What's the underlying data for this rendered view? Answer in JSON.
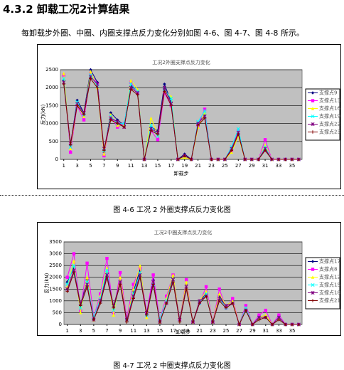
{
  "heading": "4.3.2 卸载工况2计算结果",
  "paragraph": "每卸载步外圈、中圈、内圈支撑点反力变化分别如图 4-6、图 4-7、图 4-8 所示。",
  "captions": [
    "图 4-6   工况 2 外圈支撑点反力变化图",
    "图 4-7   工况 2 中圈支撑点反力变化图"
  ],
  "chart_data": [
    {
      "type": "line",
      "title": "工况2外圈支撑点反力变化",
      "x_label": "卸载步",
      "y_label": "反力(kN)",
      "x": [
        1,
        2,
        3,
        4,
        5,
        6,
        7,
        8,
        9,
        10,
        11,
        12,
        13,
        14,
        15,
        16,
        17,
        18,
        19,
        20,
        21,
        22,
        23,
        24,
        25,
        26,
        27,
        28,
        29,
        30,
        31,
        32,
        33,
        34,
        35,
        36
      ],
      "xlim": [
        0.5,
        36.5
      ],
      "xticks": [
        1,
        3,
        5,
        7,
        9,
        11,
        13,
        15,
        17,
        19,
        21,
        23,
        25,
        27,
        29,
        31,
        33,
        35
      ],
      "ylim": [
        0,
        2500
      ],
      "yticks": [
        0,
        500,
        1000,
        1500,
        2000,
        2500
      ],
      "grid": true,
      "legend": "right",
      "series": [
        {
          "name": "支撑点9",
          "color": "#000080",
          "marker": "diamond",
          "values": [
            2200,
            400,
            1650,
            1300,
            2500,
            2150,
            200,
            1300,
            1100,
            950,
            2050,
            1900,
            0,
            900,
            800,
            2100,
            1600,
            0,
            150,
            0,
            1000,
            1250,
            0,
            0,
            0,
            300,
            700,
            0,
            0,
            0,
            300,
            0,
            0,
            0,
            0,
            0
          ]
        },
        {
          "name": "支撑点13",
          "color": "#ff00ff",
          "marker": "square",
          "values": [
            2350,
            200,
            1500,
            1100,
            2400,
            2100,
            100,
            1200,
            900,
            1000,
            2150,
            1850,
            0,
            800,
            550,
            1850,
            1500,
            0,
            100,
            0,
            950,
            1400,
            0,
            0,
            0,
            250,
            800,
            0,
            0,
            0,
            550,
            0,
            0,
            0,
            0,
            0
          ]
        },
        {
          "name": "支撑点16",
          "color": "#ffff00",
          "marker": "triangle",
          "values": [
            2400,
            300,
            1550,
            1200,
            2450,
            2000,
            150,
            1250,
            950,
            950,
            2200,
            1950,
            0,
            1150,
            700,
            1900,
            1750,
            0,
            50,
            0,
            900,
            1300,
            0,
            0,
            0,
            200,
            650,
            0,
            0,
            0,
            400,
            0,
            0,
            0,
            0,
            0
          ]
        },
        {
          "name": "支撑点19",
          "color": "#00ffff",
          "marker": "x",
          "values": [
            2250,
            350,
            1600,
            1250,
            2350,
            2050,
            250,
            1200,
            1000,
            1000,
            2100,
            1900,
            0,
            950,
            650,
            1950,
            1700,
            0,
            100,
            0,
            1050,
            1350,
            0,
            0,
            0,
            350,
            850,
            0,
            0,
            0,
            350,
            0,
            0,
            0,
            0,
            0
          ]
        },
        {
          "name": "支撑点22",
          "color": "#800080",
          "marker": "star",
          "values": [
            2150,
            450,
            1550,
            1300,
            2300,
            2100,
            300,
            1150,
            1050,
            900,
            2000,
            1850,
            0,
            850,
            750,
            2000,
            1550,
            0,
            100,
            0,
            1000,
            1200,
            0,
            0,
            0,
            300,
            750,
            0,
            0,
            0,
            300,
            0,
            0,
            0,
            0,
            0
          ]
        },
        {
          "name": "支撑点23",
          "color": "#800000",
          "marker": "plus",
          "values": [
            2100,
            400,
            1500,
            1250,
            2250,
            2000,
            250,
            1100,
            1000,
            900,
            1950,
            1800,
            0,
            800,
            700,
            1900,
            1500,
            0,
            100,
            0,
            950,
            1150,
            0,
            0,
            0,
            250,
            700,
            0,
            0,
            0,
            250,
            0,
            0,
            0,
            0,
            0
          ]
        }
      ]
    },
    {
      "type": "line",
      "title": "工况2中圈支撑点反力变化",
      "x_label": "卸载步",
      "y_label": "反力(kN)",
      "x": [
        1,
        2,
        3,
        4,
        5,
        6,
        7,
        8,
        9,
        10,
        11,
        12,
        13,
        14,
        15,
        16,
        17,
        18,
        19,
        20,
        21,
        22,
        23,
        24,
        25,
        26,
        27,
        28,
        29,
        30,
        31,
        32,
        33,
        34,
        35,
        36
      ],
      "xlim": [
        0.5,
        36.5
      ],
      "xticks": [
        1,
        3,
        5,
        7,
        9,
        11,
        13,
        15,
        17,
        19,
        21,
        23,
        25,
        27,
        29,
        31,
        33,
        35
      ],
      "ylim": [
        0,
        3500
      ],
      "yticks": [
        0,
        500,
        1000,
        1500,
        2000,
        2500,
        3000,
        3500
      ],
      "grid": true,
      "legend": "right",
      "series": [
        {
          "name": "支撑点17",
          "color": "#000080",
          "marker": "diamond",
          "values": [
            1800,
            2400,
            800,
            1900,
            200,
            1000,
            2200,
            700,
            1900,
            200,
            1400,
            2300,
            400,
            1900,
            100,
            1000,
            2000,
            200,
            1700,
            100,
            1000,
            1300,
            100,
            1200,
            800,
            1000,
            0,
            800,
            0,
            300,
            300,
            0,
            300,
            0,
            0,
            0
          ]
        },
        {
          "name": "支撑点8",
          "color": "#ff00ff",
          "marker": "square",
          "values": [
            2000,
            3000,
            600,
            2600,
            300,
            1300,
            2800,
            500,
            2200,
            300,
            1700,
            2400,
            500,
            2100,
            200,
            1200,
            2100,
            200,
            1900,
            100,
            900,
            1600,
            100,
            1500,
            700,
            1100,
            0,
            800,
            0,
            400,
            600,
            0,
            400,
            0,
            0,
            0
          ]
        },
        {
          "name": "支撑点12",
          "color": "#ffff00",
          "marker": "triangle",
          "values": [
            1600,
            2700,
            500,
            2000,
            200,
            1200,
            2400,
            400,
            2000,
            200,
            1500,
            2500,
            300,
            1800,
            100,
            1100,
            2100,
            200,
            1800,
            100,
            1000,
            1400,
            100,
            1300,
            800,
            1000,
            0,
            700,
            0,
            300,
            400,
            0,
            300,
            0,
            0,
            0
          ]
        },
        {
          "name": "支撑点15",
          "color": "#00ffff",
          "marker": "x",
          "values": [
            1700,
            2500,
            700,
            1800,
            300,
            1100,
            2300,
            600,
            1800,
            200,
            1300,
            2200,
            400,
            1700,
            200,
            1000,
            1900,
            200,
            1600,
            100,
            900,
            1300,
            100,
            1100,
            700,
            900,
            0,
            700,
            0,
            300,
            300,
            0,
            300,
            0,
            0,
            0
          ]
        },
        {
          "name": "支撑点18",
          "color": "#800080",
          "marker": "star",
          "values": [
            1500,
            2300,
            900,
            1700,
            200,
            1000,
            2100,
            800,
            1800,
            200,
            1200,
            2100,
            500,
            1800,
            100,
            900,
            1900,
            200,
            1600,
            100,
            1000,
            1200,
            100,
            1100,
            800,
            900,
            0,
            600,
            0,
            300,
            300,
            0,
            300,
            0,
            0,
            0
          ]
        },
        {
          "name": "支撑点21",
          "color": "#800000",
          "marker": "plus",
          "values": [
            1400,
            2200,
            800,
            1600,
            200,
            900,
            2000,
            700,
            1700,
            100,
            1100,
            2000,
            400,
            1700,
            100,
            900,
            1800,
            100,
            1500,
            100,
            900,
            1200,
            100,
            1000,
            700,
            900,
            0,
            600,
            0,
            200,
            300,
            0,
            200,
            0,
            0,
            0
          ]
        }
      ]
    }
  ]
}
